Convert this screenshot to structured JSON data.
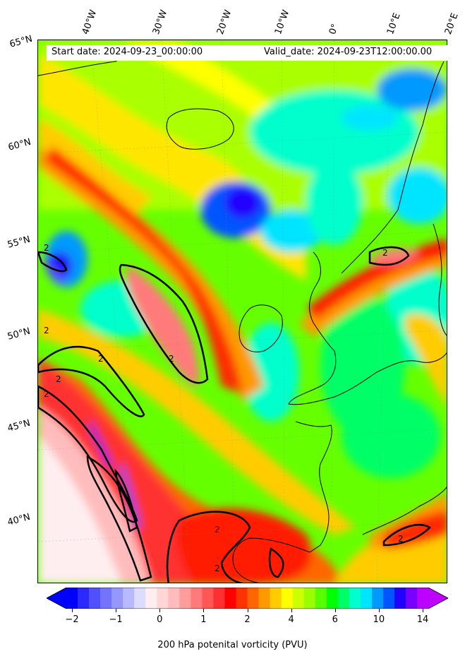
{
  "header": {
    "start_label": "Start date: 2024-09-23_00:00:00",
    "valid_label": "Valid_date: 2024-09-23T12:00:00.00"
  },
  "longitude_labels": [
    "40°W",
    "30°W",
    "20°W",
    "10°W",
    "0°",
    "10°E",
    "20°E"
  ],
  "latitude_labels": [
    "65°N",
    "60°N",
    "55°N",
    "50°N",
    "45°N",
    "40°N"
  ],
  "contour_labels": [
    "2",
    "2",
    "2",
    "2",
    "2",
    "2",
    "2",
    "2",
    "2",
    "2"
  ],
  "colorbar": {
    "label": "200 hPa potenital vorticity (PVU)",
    "ticks": [
      "−2",
      "−1",
      "0",
      "1",
      "2",
      "4",
      "6",
      "10",
      "14"
    ],
    "colors": [
      "#0000ff",
      "#2a2aff",
      "#5050ff",
      "#7373ff",
      "#9696ff",
      "#b9b9ff",
      "#dcdcff",
      "#ffeef0",
      "#ffd6d6",
      "#ffbcbc",
      "#ff9c9c",
      "#ff7a7a",
      "#ff5656",
      "#ff3030",
      "#ff0000",
      "#ff3300",
      "#ff6600",
      "#ff9900",
      "#ffcc00",
      "#ffff00",
      "#ccff00",
      "#99ff00",
      "#55ff00",
      "#00ff00",
      "#00ff66",
      "#00ffcc",
      "#00e5ff",
      "#0099ff",
      "#0055ff",
      "#2200ff",
      "#7700ff",
      "#bb00ff"
    ],
    "under_color": "#0000ff",
    "over_color": "#bf00ff"
  }
}
